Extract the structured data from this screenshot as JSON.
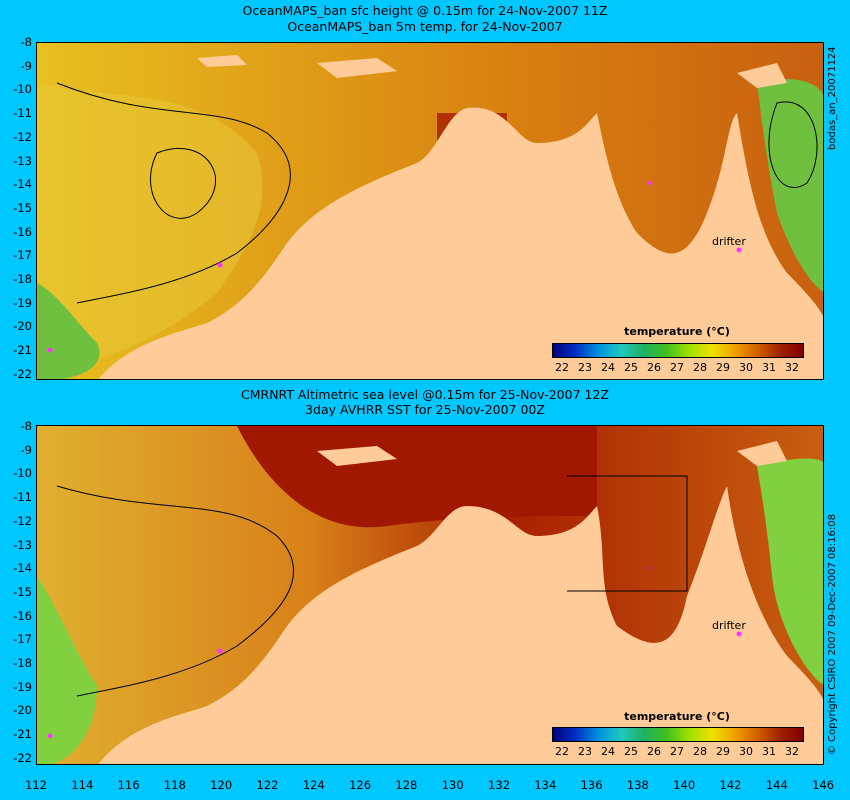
{
  "top_panel": {
    "title_line1": "OceanMAPS_ban sfc height @ 0.15m for 24-Nov-2007 11Z",
    "title_line2": "OceanMAPS_ban 5m temp. for 24-Nov-2007",
    "side_label": "bodas_an_20071124",
    "drifter_label": "drifter"
  },
  "bottom_panel": {
    "title_line1": "CMRNRT Altimetric sea level  @0.15m  for 25-Nov-2007 12Z",
    "title_line2": "3day AVHRR SST for 25-Nov-2007 00Z",
    "side_label": "© Copyright CSIRO 2007   09-Dec-2007 08:16:08",
    "drifter_label": "drifter"
  },
  "y_ticks": [
    "-8",
    "-9",
    "-10",
    "-11",
    "-12",
    "-13",
    "-14",
    "-15",
    "-16",
    "-17",
    "-18",
    "-19",
    "-20",
    "-21",
    "-22"
  ],
  "x_ticks": [
    "112",
    "114",
    "116",
    "118",
    "120",
    "122",
    "124",
    "126",
    "128",
    "130",
    "132",
    "134",
    "136",
    "138",
    "140",
    "142",
    "144",
    "146"
  ],
  "colorbar": {
    "title": "temperature (°C)",
    "ticks": [
      "22",
      "23",
      "24",
      "25",
      "26",
      "27",
      "28",
      "29",
      "30",
      "31",
      "32"
    ],
    "colors": [
      "#00007f",
      "#0030c0",
      "#0090e0",
      "#20c8c0",
      "#20b060",
      "#40c020",
      "#a0e000",
      "#f0e000",
      "#f0a000",
      "#d06000",
      "#a02000",
      "#800000"
    ]
  },
  "colors": {
    "background": "#00c8ff",
    "land": "#ffcc99",
    "warm_water": "#e08a10",
    "hot_water": "#a01800",
    "cool_water": "#80d040",
    "drifter": "#ff33ff"
  }
}
